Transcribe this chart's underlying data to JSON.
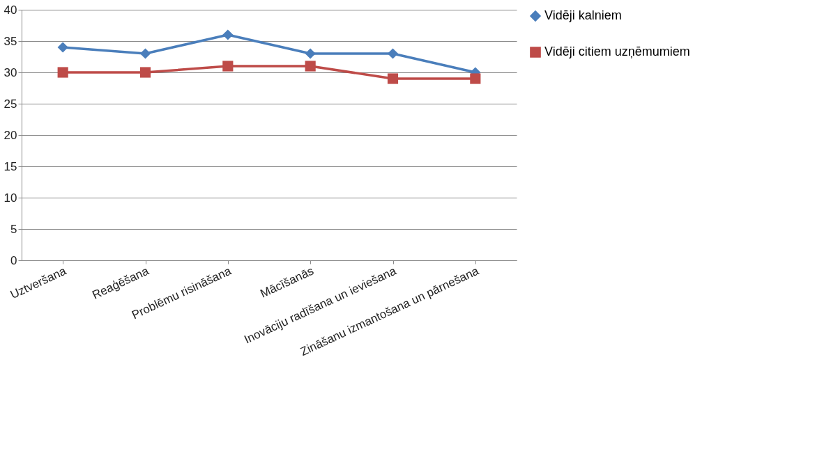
{
  "chart_data": {
    "type": "line",
    "categories": [
      "Uztveršana",
      "Reaģēšana",
      "Problēmu risināšana",
      "Mācīšanās",
      "Inovāciju radīšana un ieviešana",
      "Zināšanu izmantošana  un pārnešana"
    ],
    "series": [
      {
        "name": "Vidēji kalniem",
        "color": "#4a7ebb",
        "marker": "diamond",
        "values": [
          34,
          33,
          36,
          33,
          33,
          30
        ]
      },
      {
        "name": "Vidēji citiem uzņēmumiem",
        "color": "#be4b48",
        "marker": "square",
        "values": [
          30,
          30,
          31,
          31,
          29,
          29
        ]
      }
    ],
    "ylim": [
      0,
      40
    ],
    "yticks": [
      0,
      5,
      10,
      15,
      20,
      25,
      30,
      35,
      40
    ],
    "grid": "y",
    "legend": "right"
  }
}
